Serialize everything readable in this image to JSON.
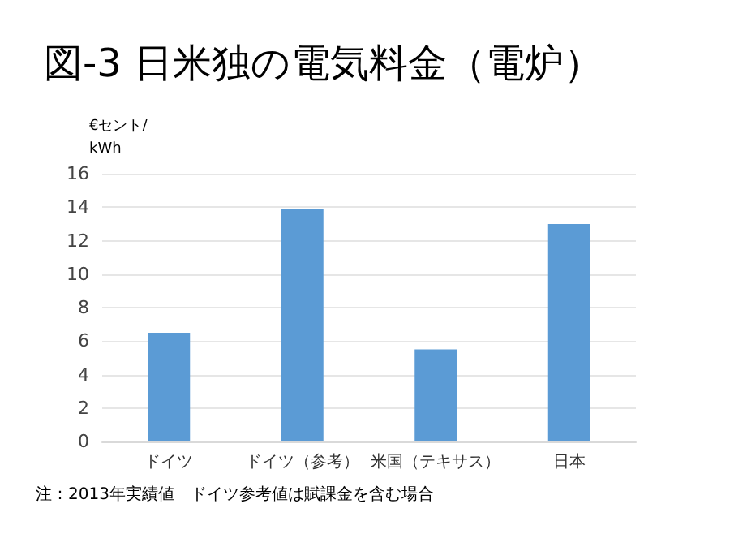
{
  "chart_data": {
    "type": "bar",
    "title": "図-3 日米独の電気料金（電炉）",
    "ylabel": "€セント/\nkWh",
    "categories": [
      "ドイツ",
      "ドイツ（参考）",
      "米国（テキサス）",
      "日本"
    ],
    "values": [
      6.5,
      13.9,
      5.5,
      13.0
    ],
    "color": "#5b9bd5",
    "ylim": [
      0,
      16
    ],
    "yticks": [
      0,
      2,
      4,
      6,
      8,
      10,
      12,
      14,
      16
    ],
    "grid": "y",
    "annotations": [
      "注：2013年実績値　ドイツ参考値は賦課金を含む場合"
    ]
  }
}
